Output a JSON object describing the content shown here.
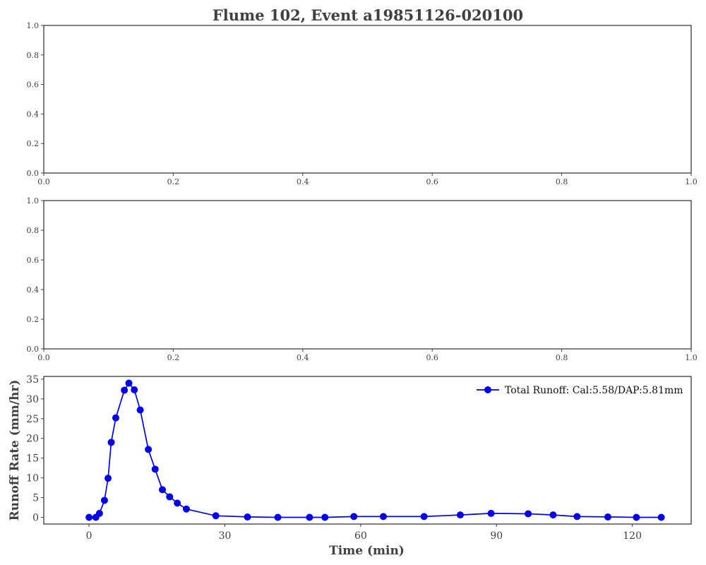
{
  "title": "Flume 102, Event a19851126-020100",
  "chart_data": [
    {
      "type": "line",
      "empty": true,
      "xlim": [
        0,
        1
      ],
      "ylim": [
        0,
        1
      ],
      "x_ticks": [
        "0.0",
        "0.2",
        "0.4",
        "0.6",
        "0.8",
        "1.0"
      ],
      "y_ticks": [
        "0.0",
        "0.2",
        "0.4",
        "0.6",
        "0.8",
        "1.0"
      ]
    },
    {
      "type": "line",
      "empty": true,
      "xlim": [
        0,
        1
      ],
      "ylim": [
        0,
        1
      ],
      "x_ticks": [
        "0.0",
        "0.2",
        "0.4",
        "0.6",
        "0.8",
        "1.0"
      ],
      "y_ticks": [
        "0.0",
        "0.2",
        "0.4",
        "0.6",
        "0.8",
        "1.0"
      ]
    },
    {
      "type": "line",
      "xlabel": "Time (min)",
      "ylabel": "Runoff Rate (mm/hr)",
      "xlim": [
        -10,
        133
      ],
      "ylim": [
        -1.7,
        35.7
      ],
      "x_ticks": [
        "0",
        "30",
        "60",
        "90",
        "120"
      ],
      "y_ticks": [
        "0",
        "5",
        "10",
        "15",
        "20",
        "25",
        "30",
        "35"
      ],
      "legend_position": "top-right",
      "color": "#0000ee",
      "series": [
        {
          "name": "Total Runoff: Cal:5.58/DAP:5.81mm",
          "x": [
            0,
            1.5,
            2.3,
            3.4,
            4.2,
            4.9,
            5.9,
            7.8,
            8.8,
            10.0,
            11.3,
            13.1,
            14.6,
            16.2,
            17.8,
            19.5,
            21.5,
            28.0,
            35.0,
            41.7,
            48.7,
            52.1,
            58.5,
            65.0,
            74.0,
            82.0,
            88.8,
            97.0,
            102.5,
            107.8,
            114.6,
            120.9,
            126.4
          ],
          "y": [
            0,
            0,
            1,
            4.3,
            9.9,
            19,
            25.2,
            32.2,
            34,
            32.3,
            27.2,
            17.2,
            12.2,
            7,
            5.2,
            3.6,
            2.1,
            0.4,
            0.1,
            0,
            0,
            0,
            0.2,
            0.2,
            0.2,
            0.6,
            1,
            0.9,
            0.6,
            0.2,
            0.1,
            0,
            0
          ]
        }
      ]
    }
  ]
}
